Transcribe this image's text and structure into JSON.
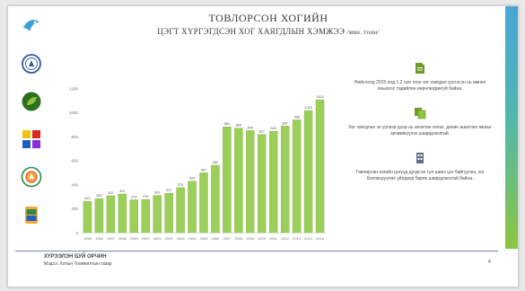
{
  "header": {
    "title_line1": "ТОВЛОРСОН ХОГИЙН",
    "title_line2": "ЦЭГТ ХҮРГЭГДСЭН ХОГ ХАЯГДЛЫН ХЭМЖЭЭ",
    "unit": "/мян. тонн/"
  },
  "logos": [
    {
      "icon": "bird-logo-icon",
      "color": "#3aa0d8"
    },
    {
      "icon": "ministry-seal-icon",
      "color": "#2e5a9e"
    },
    {
      "icon": "eco-leaf-icon",
      "color": "#3b8f2a"
    },
    {
      "icon": "colored-squares-icon",
      "color": "#d7261e"
    },
    {
      "icon": "recycle-emblem-icon",
      "color": "#e0552b"
    },
    {
      "icon": "bin-icon",
      "color": "#2a8a4a"
    }
  ],
  "notes": [
    {
      "icon": "document-icon",
      "text": "Нийслэлд 2015 онд 1.2 сая тонн хог хаягдал үүсгэсэн нь өмнөх оныхоос төдийлөн өөрчлөгдөөгүй байна."
    },
    {
      "icon": "documents-icon",
      "text": "Хог хаягдлыг эх үүсвэр дээр нь ангилан ялгах, дахин ашиглах ажлыг эрчимжүүлэх шаардлагатай."
    },
    {
      "icon": "building-icon",
      "text": "Төвлөрсөн хогийн цэгүүд дүүрсэн тул шинэ цэг байгуулах, хог боловсруулах үйлдвэр барих шаардлагатай байна."
    }
  ],
  "footer": {
    "org": "ХҮРЭЭЛЭН БУЙ ОРЧИН",
    "subtitle": "Мэдээ: Хотын Тохижилтын газар",
    "page": "4"
  },
  "colors": {
    "bar": "#9ccf5a",
    "bar_dark": "#7fb33d",
    "accent_top": "#46a6d6",
    "accent_bottom": "#8cc63f"
  },
  "chart_data": {
    "type": "bar",
    "categories": [
      "1995",
      "1996",
      "1997",
      "1998",
      "1999",
      "2000",
      "2001",
      "2002",
      "2003",
      "2004",
      "2005",
      "2006",
      "2007",
      "2008",
      "2009",
      "2010",
      "2011",
      "2012",
      "2013",
      "2014",
      "2015"
    ],
    "values": [
      261,
      283,
      307,
      321,
      273,
      276,
      309,
      327,
      375,
      428,
      497,
      560,
      880,
      869,
      849,
      817,
      843,
      887,
      938,
      1015,
      1104
    ],
    "ylim": [
      0,
      1300
    ],
    "yticks": [
      0,
      200,
      400,
      600,
      800,
      1000,
      1200
    ],
    "grid": false,
    "legend": "none"
  }
}
